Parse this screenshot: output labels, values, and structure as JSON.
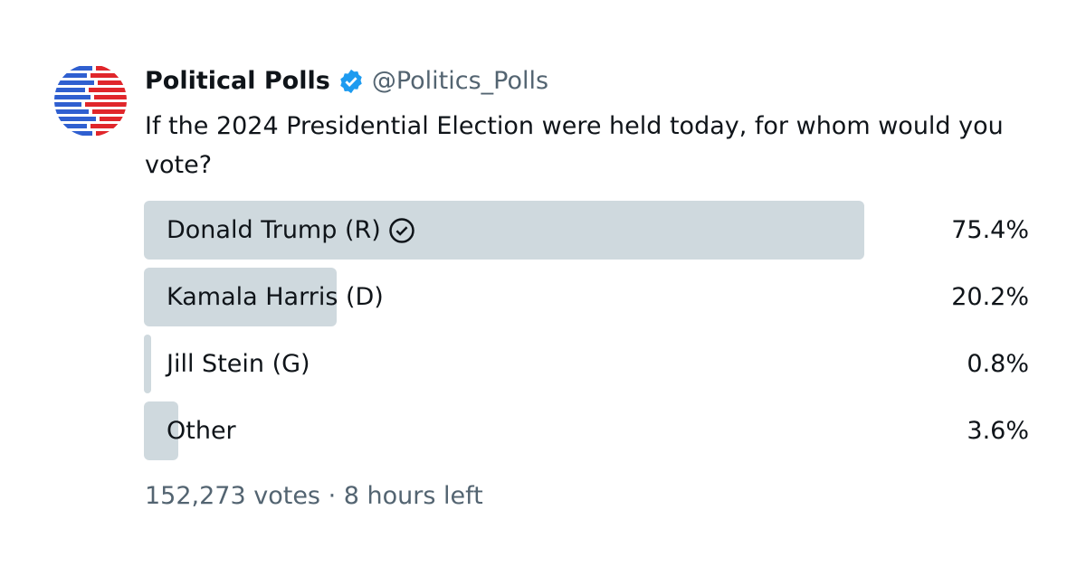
{
  "tweet": {
    "author_name": "Political Polls",
    "handle": "@Politics_Polls",
    "text": "If the 2024 Presidential Election were held today, for whom would you vote?"
  },
  "poll": {
    "options": [
      {
        "name": "Donald Trump (R)",
        "percent": 75.4,
        "percent_label": "75.4%",
        "selected": true
      },
      {
        "name": "Kamala Harris (D)",
        "percent": 20.2,
        "percent_label": "20.2%"
      },
      {
        "name": "Jill Stein (G)",
        "percent": 0.8,
        "percent_label": "0.8%"
      },
      {
        "name": "Other",
        "percent": 3.6,
        "percent_label": "3.6%"
      }
    ],
    "footer": "152,273 votes · 8 hours left"
  }
}
